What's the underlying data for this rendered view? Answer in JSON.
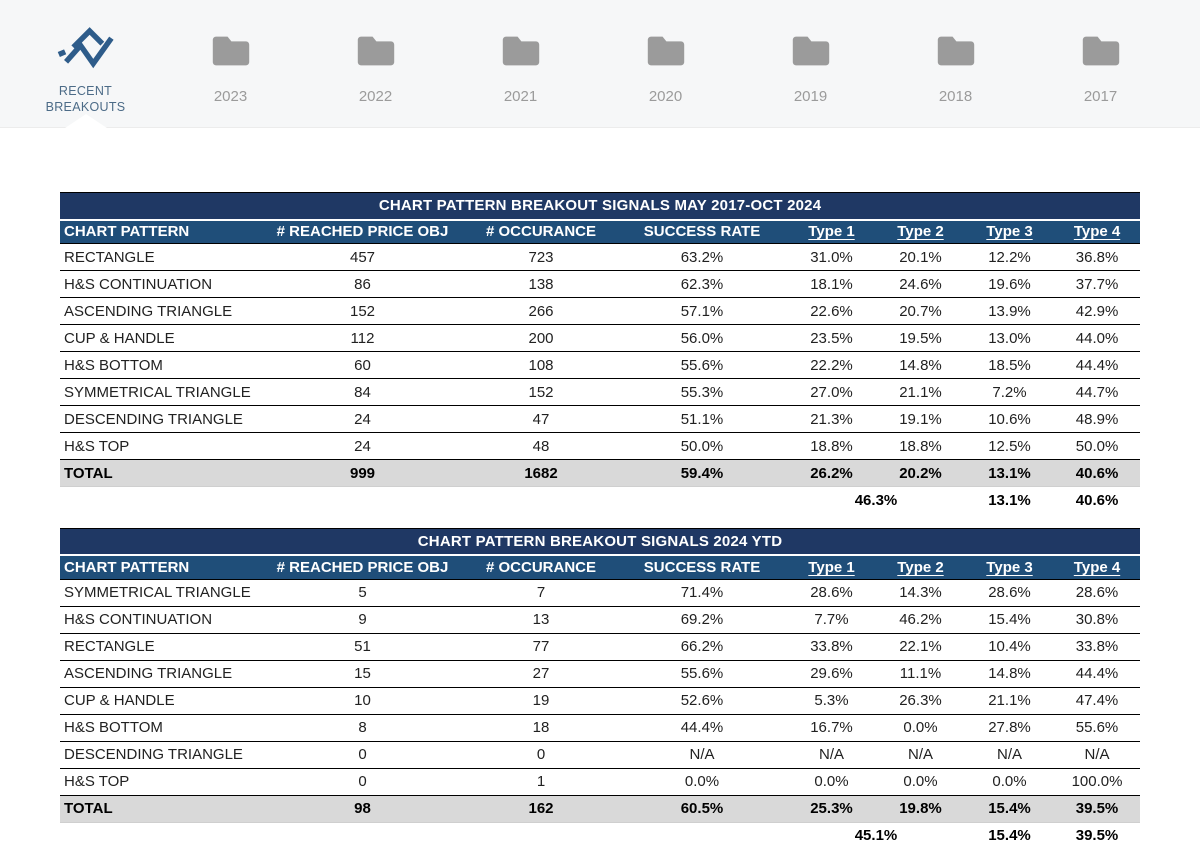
{
  "topbar": {
    "items": [
      {
        "id": "recent-breakouts",
        "label": "RECENT BREAKOUTS",
        "icon": "line-chart-icon",
        "active": true
      },
      {
        "id": "2023",
        "label": "2023",
        "icon": "folder-icon",
        "active": false
      },
      {
        "id": "2022",
        "label": "2022",
        "icon": "folder-icon",
        "active": false
      },
      {
        "id": "2021",
        "label": "2021",
        "icon": "folder-icon",
        "active": false
      },
      {
        "id": "2020",
        "label": "2020",
        "icon": "folder-icon",
        "active": false
      },
      {
        "id": "2019",
        "label": "2019",
        "icon": "folder-icon",
        "active": false
      },
      {
        "id": "2018",
        "label": "2018",
        "icon": "folder-icon",
        "active": false
      },
      {
        "id": "2017",
        "label": "2017",
        "icon": "folder-icon",
        "active": false
      }
    ]
  },
  "colors": {
    "title_bar": "#1f3864",
    "header_bar": "#1f4e79",
    "total_row_bg": "#d9d9d9",
    "icon_accent": "#2e5c8a",
    "folder_gray": "#9b9b9b",
    "active_tab_text": "#4c6b87",
    "inactive_tab_text": "#9b9b9b",
    "topbar_bg": "#f6f7f8"
  },
  "tables": [
    {
      "title": "CHART PATTERN BREAKOUT SIGNALS MAY 2017-OCT 2024",
      "columns": [
        "CHART PATTERN",
        "# REACHED PRICE OBJ",
        "# OCCURANCE",
        "SUCCESS RATE",
        "Type 1",
        "Type 2",
        "Type 3",
        "Type 4"
      ],
      "rows": [
        [
          "RECTANGLE",
          "457",
          "723",
          "63.2%",
          "31.0%",
          "20.1%",
          "12.2%",
          "36.8%"
        ],
        [
          "H&S CONTINUATION",
          "86",
          "138",
          "62.3%",
          "18.1%",
          "24.6%",
          "19.6%",
          "37.7%"
        ],
        [
          "ASCENDING TRIANGLE",
          "152",
          "266",
          "57.1%",
          "22.6%",
          "20.7%",
          "13.9%",
          "42.9%"
        ],
        [
          "CUP & HANDLE",
          "112",
          "200",
          "56.0%",
          "23.5%",
          "19.5%",
          "13.0%",
          "44.0%"
        ],
        [
          "H&S BOTTOM",
          "60",
          "108",
          "55.6%",
          "22.2%",
          "14.8%",
          "18.5%",
          "44.4%"
        ],
        [
          "SYMMETRICAL TRIANGLE",
          "84",
          "152",
          "55.3%",
          "27.0%",
          "21.1%",
          "7.2%",
          "44.7%"
        ],
        [
          "DESCENDING TRIANGLE",
          "24",
          "47",
          "51.1%",
          "21.3%",
          "19.1%",
          "10.6%",
          "48.9%"
        ],
        [
          "H&S TOP",
          "24",
          "48",
          "50.0%",
          "18.8%",
          "18.8%",
          "12.5%",
          "50.0%"
        ]
      ],
      "total_row": [
        "TOTAL",
        "999",
        "1682",
        "59.4%",
        "26.2%",
        "20.2%",
        "13.1%",
        "40.6%"
      ],
      "summary_row": {
        "type1_2": "46.3%",
        "type3": "13.1%",
        "type4": "40.6%"
      }
    },
    {
      "title": "CHART PATTERN BREAKOUT SIGNALS 2024 YTD",
      "columns": [
        "CHART PATTERN",
        "# REACHED PRICE OBJ",
        "# OCCURANCE",
        "SUCCESS RATE",
        "Type 1",
        "Type 2",
        "Type 3",
        "Type 4"
      ],
      "rows": [
        [
          "SYMMETRICAL TRIANGLE",
          "5",
          "7",
          "71.4%",
          "28.6%",
          "14.3%",
          "28.6%",
          "28.6%"
        ],
        [
          "H&S CONTINUATION",
          "9",
          "13",
          "69.2%",
          "7.7%",
          "46.2%",
          "15.4%",
          "30.8%"
        ],
        [
          "RECTANGLE",
          "51",
          "77",
          "66.2%",
          "33.8%",
          "22.1%",
          "10.4%",
          "33.8%"
        ],
        [
          "ASCENDING TRIANGLE",
          "15",
          "27",
          "55.6%",
          "29.6%",
          "11.1%",
          "14.8%",
          "44.4%"
        ],
        [
          "CUP & HANDLE",
          "10",
          "19",
          "52.6%",
          "5.3%",
          "26.3%",
          "21.1%",
          "47.4%"
        ],
        [
          "H&S BOTTOM",
          "8",
          "18",
          "44.4%",
          "16.7%",
          "0.0%",
          "27.8%",
          "55.6%"
        ],
        [
          "DESCENDING TRIANGLE",
          "0",
          "0",
          "N/A",
          "N/A",
          "N/A",
          "N/A",
          "N/A"
        ],
        [
          "H&S TOP",
          "0",
          "1",
          "0.0%",
          "0.0%",
          "0.0%",
          "0.0%",
          "100.0%"
        ]
      ],
      "total_row": [
        "TOTAL",
        "98",
        "162",
        "60.5%",
        "25.3%",
        "19.8%",
        "15.4%",
        "39.5%"
      ],
      "summary_row": {
        "type1_2": "45.1%",
        "type3": "15.4%",
        "type4": "39.5%"
      }
    }
  ]
}
